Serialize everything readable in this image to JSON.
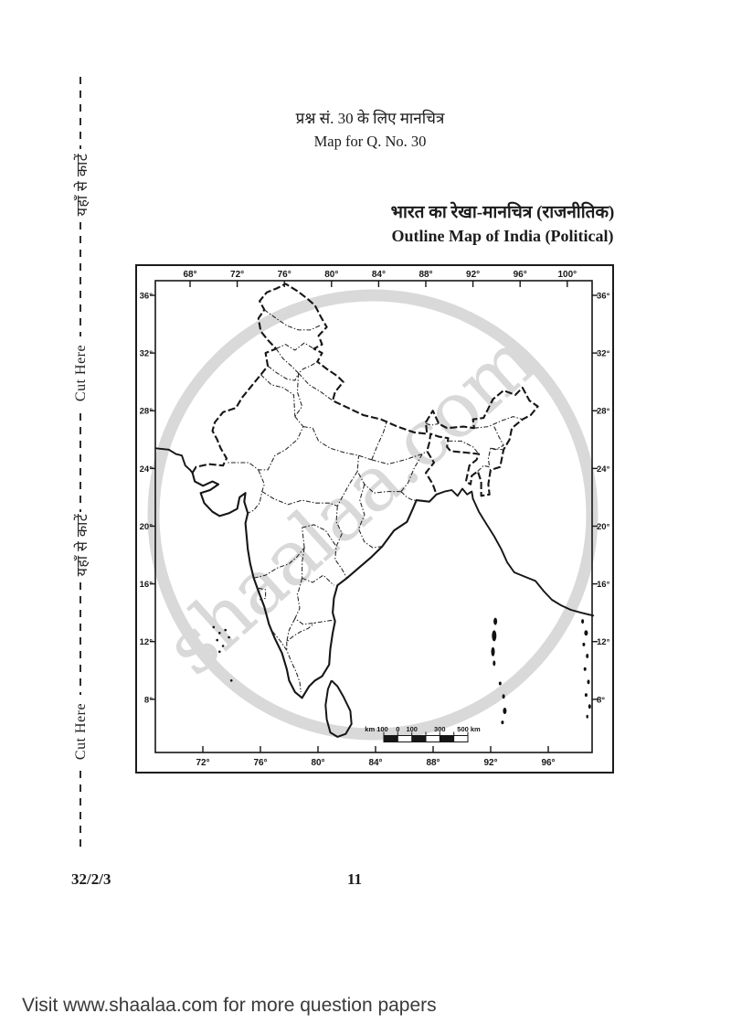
{
  "header": {
    "hindi": "प्रश्न सं. 30 के लिए मानचित्र",
    "english": "Map for Q. No. 30"
  },
  "title": {
    "hindi": "भारत का रेखा-मानचित्र (राजनीतिक)",
    "english": "Outline Map of India (Political)"
  },
  "cut_here": {
    "hindi": "यहाँ से काटें",
    "english": "Cut Here"
  },
  "map": {
    "top_longitude_labels": [
      "68°",
      "72°",
      "76°",
      "80°",
      "84°",
      "88°",
      "92°",
      "96°",
      "100°"
    ],
    "bottom_longitude_labels": [
      "72°",
      "76°",
      "80°",
      "84°",
      "88°",
      "92°",
      "96°"
    ],
    "left_latitude_labels": [
      "36°",
      "32°",
      "28°",
      "24°",
      "20°",
      "16°",
      "12°",
      "8°"
    ],
    "right_latitude_labels": [
      "36°",
      "32°",
      "28°",
      "24°",
      "20°",
      "16°",
      "12°",
      "8°"
    ],
    "scale_bar_labels": [
      "km 100",
      "0",
      "100",
      "300",
      "500 km"
    ],
    "watermark_text": "shaalaa.com",
    "watermark_color": "#d9d9d9",
    "line_color": "#161616"
  },
  "footer_row": {
    "paper_code": "32/2/3",
    "page_number": "11"
  },
  "footer": {
    "text": "Visit www.shaalaa.com for more question papers"
  }
}
